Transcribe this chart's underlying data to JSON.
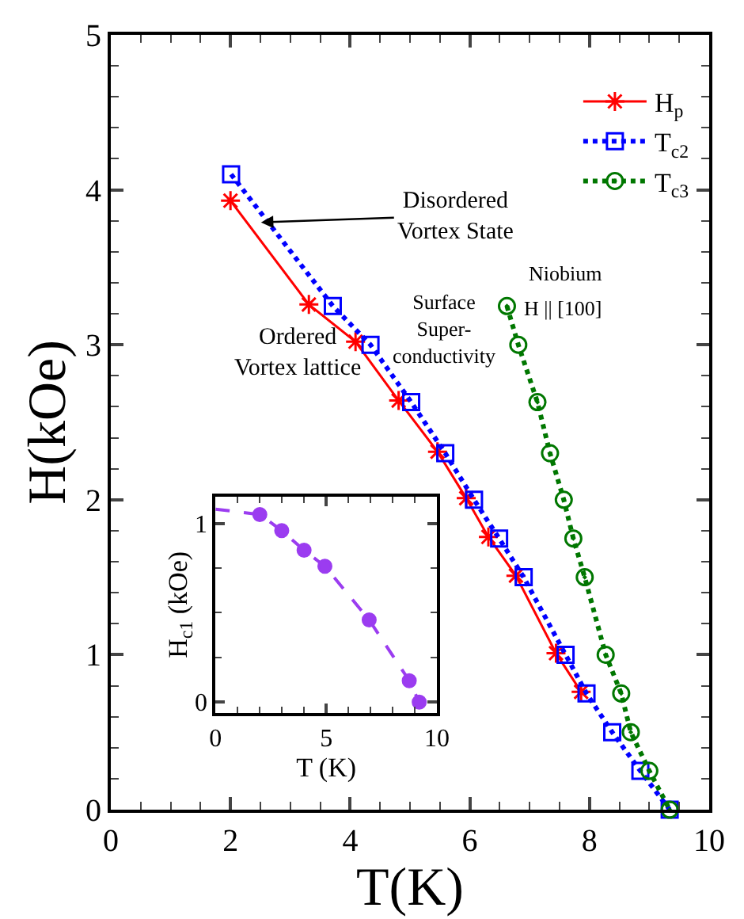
{
  "chart_data": [
    {
      "type": "line",
      "xlabel": "T(K)",
      "ylabel": "H(kOe)",
      "xlim": [
        0,
        10
      ],
      "ylim": [
        0,
        5
      ],
      "xticks": [
        0,
        {
          "value": 0.5,
          "label": null
        },
        {
          "value": 1,
          "label": null
        },
        {
          "value": 1.5,
          "label": null
        },
        2,
        {
          "value": 2.5,
          "label": null
        },
        {
          "value": 3,
          "label": null
        },
        {
          "value": 3.5,
          "label": null
        },
        4,
        {
          "value": 4.5,
          "label": null
        },
        {
          "value": 5,
          "label": null
        },
        {
          "value": 5.5,
          "label": null
        },
        6,
        {
          "value": 6.5,
          "label": null
        },
        {
          "value": 7,
          "label": null
        },
        {
          "value": 7.5,
          "label": null
        },
        8,
        {
          "value": 8.5,
          "label": null
        },
        {
          "value": 9,
          "label": null
        },
        {
          "value": 9.5,
          "label": null
        },
        10
      ],
      "yticks": [
        0,
        {
          "value": 0.2,
          "label": null
        },
        {
          "value": 0.4,
          "label": null
        },
        {
          "value": 0.6,
          "label": null
        },
        {
          "value": 0.8,
          "label": null
        },
        1,
        {
          "value": 1.2,
          "label": null
        },
        {
          "value": 1.4,
          "label": null
        },
        {
          "value": 1.6,
          "label": null
        },
        {
          "value": 1.8,
          "label": null
        },
        2,
        {
          "value": 2.2,
          "label": null
        },
        {
          "value": 2.4,
          "label": null
        },
        {
          "value": 2.6,
          "label": null
        },
        {
          "value": 2.8,
          "label": null
        },
        3,
        {
          "value": 3.2,
          "label": null
        },
        {
          "value": 3.4,
          "label": null
        },
        {
          "value": 3.6,
          "label": null
        },
        {
          "value": 3.8,
          "label": null
        },
        4,
        {
          "value": 4.2,
          "label": null
        },
        {
          "value": 4.4,
          "label": null
        },
        {
          "value": 4.6,
          "label": null
        },
        {
          "value": 4.8,
          "label": null
        },
        5
      ],
      "grid": false,
      "legend": "top right",
      "series": [
        {
          "name": "H$_{p}$",
          "color": "#ff0000",
          "marker": "cross",
          "line_style": "solid",
          "x": [
            2.0,
            3.31,
            4.09,
            4.81,
            5.46,
            5.94,
            6.31,
            6.77,
            7.44,
            7.86
          ],
          "values": [
            3.93,
            3.26,
            3.02,
            2.64,
            2.31,
            2.01,
            1.76,
            1.51,
            1.01,
            0.76
          ]
        },
        {
          "name": "T$_{c2}$",
          "color": "#0000ff",
          "marker": "square",
          "line_style": "dotted",
          "x": [
            2.01,
            3.71,
            4.34,
            5.02,
            5.59,
            6.07,
            6.49,
            6.9,
            7.6,
            7.95,
            8.38,
            8.85,
            9.34
          ],
          "values": [
            4.1,
            3.25,
            3.0,
            2.63,
            2.3,
            2.0,
            1.75,
            1.5,
            1.0,
            0.75,
            0.5,
            0.25,
            0.0
          ]
        },
        {
          "name": "T$_{c3}$",
          "color": "#007700",
          "marker": "circle",
          "line_style": "dotted",
          "x": [
            6.62,
            6.81,
            7.13,
            7.34,
            7.57,
            7.73,
            7.92,
            8.27,
            8.53,
            8.69,
            9.0,
            9.34
          ],
          "values": [
            3.25,
            3.0,
            2.63,
            2.3,
            2.0,
            1.75,
            1.5,
            1.0,
            0.75,
            0.5,
            0.25,
            0.0
          ]
        }
      ],
      "annotations": [
        {
          "text": "Disordered\nVortex State",
          "x": 2.51,
          "y": 3.79
        },
        "Ordered\nVortex lattice",
        "Surface\nSuper-\nconductivity",
        "Niobium",
        "H || [100]"
      ]
    },
    {
      "type": "line",
      "xlabel": "T (K)",
      "ylabel": "H$_{c1}$ (kOe)",
      "xlim": [
        0,
        10
      ],
      "ylim": [
        -0.06,
        1.15
      ],
      "xticks": [
        0,
        {
          "value": 1,
          "label": null
        },
        {
          "value": 2,
          "label": null
        },
        {
          "value": 3,
          "label": null
        },
        {
          "value": 4,
          "label": null
        },
        5,
        {
          "value": 6,
          "label": null
        },
        {
          "value": 7,
          "label": null
        },
        {
          "value": 8,
          "label": null
        },
        {
          "value": 9,
          "label": null
        },
        10
      ],
      "yticks": [
        0,
        {
          "value": 0.25,
          "label": null
        },
        {
          "value": 0.5,
          "label": null
        },
        {
          "value": 0.75,
          "label": null
        },
        1
      ],
      "grid": false,
      "series": [
        {
          "type": "line",
          "color": "#9b3cf0",
          "marker": "none",
          "line_style": "dashed",
          "x": [
            0,
            2.0,
            2.99,
            4.0,
            4.94,
            6.94,
            8.75,
            9.2
          ],
          "values": [
            1.08,
            1.05,
            0.96,
            0.85,
            0.76,
            0.46,
            0.12,
            0.0
          ]
        },
        {
          "type": "scatter",
          "color": "#9b3cf0",
          "marker": "circle",
          "x": [
            2.0,
            2.99,
            4.0,
            4.94,
            6.94,
            8.75,
            9.2
          ],
          "values": [
            1.05,
            0.96,
            0.85,
            0.76,
            0.46,
            0.12,
            0.0
          ]
        }
      ]
    }
  ]
}
